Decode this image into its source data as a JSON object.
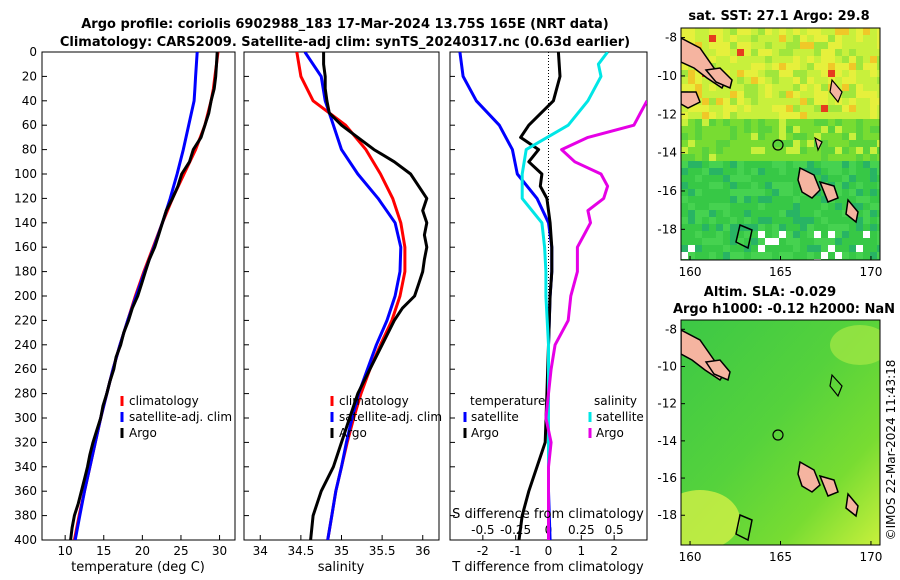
{
  "title": {
    "line1": "Argo profile: coriolis 6902988_183 17-Mar-2024 13.75S 165E (NRT data)",
    "line2": "Climatology: CARS2009. Satellite-adj clim: synTS_20240317.nc (0.63d earlier)"
  },
  "colors": {
    "climatology": "#ff0000",
    "satellite": "#0000ff",
    "argo": "#000000",
    "sdiff_satellite": "#00e6e6",
    "sdiff_argo": "#e600e6"
  },
  "chart_data": [
    {
      "id": "temperature",
      "type": "line",
      "xlabel": "temperature (deg C)",
      "xlim": [
        7,
        32
      ],
      "ylim": [
        400,
        0
      ],
      "xticks": [
        "10",
        "15",
        "20",
        "25",
        "30"
      ],
      "yticks": [
        "0",
        "20",
        "40",
        "60",
        "80",
        "100",
        "120",
        "140",
        "160",
        "180",
        "200",
        "220",
        "240",
        "260",
        "280",
        "300",
        "320",
        "340",
        "360",
        "380",
        "400"
      ],
      "legend": [
        "climatology",
        "satellite-adj. clim",
        "Argo"
      ],
      "legend_position": "lower-right",
      "series": [
        {
          "name": "climatology",
          "depth": [
            0,
            10,
            20,
            30,
            40,
            60,
            80,
            100,
            120,
            140,
            160,
            180,
            200,
            220,
            240,
            260,
            280,
            300,
            320,
            340,
            360,
            380,
            400
          ],
          "values": [
            29.8,
            29.6,
            29.4,
            29.2,
            28.9,
            28.1,
            26.9,
            25.4,
            23.9,
            22.6,
            21.4,
            20.2,
            19.1,
            18.1,
            17.1,
            16.2,
            15.4,
            14.6,
            13.9,
            13.2,
            12.5,
            11.8,
            11.2
          ]
        },
        {
          "name": "satellite-adj. clim",
          "depth": [
            0,
            10,
            20,
            30,
            40,
            60,
            80,
            100,
            120,
            140,
            160,
            180,
            200,
            220,
            240,
            260,
            280,
            300,
            320,
            340,
            360,
            380,
            400
          ],
          "values": [
            27.1,
            27.0,
            26.9,
            26.8,
            26.7,
            26.0,
            25.3,
            24.5,
            23.6,
            22.6,
            21.5,
            20.3,
            19.2,
            18.1,
            17.1,
            16.2,
            15.4,
            14.6,
            13.9,
            13.2,
            12.5,
            11.9,
            11.3
          ]
        },
        {
          "name": "Argo",
          "depth": [
            0,
            10,
            20,
            30,
            40,
            50,
            60,
            70,
            80,
            90,
            100,
            110,
            120,
            130,
            140,
            150,
            160,
            170,
            180,
            190,
            200,
            210,
            220,
            230,
            240,
            250,
            260,
            270,
            280,
            290,
            300,
            310,
            320,
            330,
            340,
            350,
            360,
            370,
            380,
            390,
            400
          ],
          "values": [
            29.7,
            29.6,
            29.5,
            29.3,
            28.9,
            28.6,
            28.1,
            27.6,
            26.6,
            26.1,
            25.1,
            24.6,
            23.9,
            23.1,
            22.6,
            22.1,
            21.6,
            20.9,
            20.4,
            19.9,
            19.4,
            18.7,
            18.2,
            17.6,
            17.2,
            16.6,
            16.3,
            15.8,
            15.4,
            14.9,
            14.6,
            14.1,
            13.6,
            13.2,
            12.9,
            12.5,
            12.1,
            11.7,
            11.2,
            10.9,
            10.7
          ]
        }
      ]
    },
    {
      "id": "salinity",
      "type": "line",
      "xlabel": "salinity",
      "xlim": [
        33.8,
        36.2
      ],
      "ylim": [
        400,
        0
      ],
      "xticks": [
        "34",
        "34.5",
        "35",
        "35.5",
        "36"
      ],
      "legend": [
        "climatology",
        "satellite-adj. clim",
        "Argo"
      ],
      "legend_position": "lower-right",
      "series": [
        {
          "name": "climatology",
          "depth": [
            0,
            20,
            40,
            60,
            80,
            100,
            120,
            140,
            160,
            180,
            200,
            220,
            240,
            260,
            280,
            300,
            320,
            340,
            360,
            380,
            400
          ],
          "values": [
            34.45,
            34.5,
            34.65,
            35.05,
            35.3,
            35.48,
            35.63,
            35.73,
            35.78,
            35.78,
            35.72,
            35.62,
            35.48,
            35.35,
            35.24,
            35.15,
            35.07,
            35.0,
            34.93,
            34.88,
            34.83
          ]
        },
        {
          "name": "satellite-adj. clim",
          "depth": [
            0,
            20,
            40,
            60,
            80,
            100,
            120,
            140,
            160,
            180,
            200,
            220,
            240,
            260,
            280,
            300,
            320,
            340,
            360,
            380,
            400
          ],
          "values": [
            34.55,
            34.75,
            34.8,
            34.9,
            35.0,
            35.2,
            35.45,
            35.66,
            35.73,
            35.72,
            35.66,
            35.56,
            35.43,
            35.32,
            35.21,
            35.13,
            35.06,
            35.0,
            34.93,
            34.88,
            34.83
          ]
        },
        {
          "name": "Argo",
          "depth": [
            0,
            10,
            20,
            30,
            40,
            50,
            60,
            70,
            80,
            90,
            100,
            110,
            120,
            130,
            140,
            150,
            160,
            170,
            180,
            190,
            200,
            210,
            220,
            240,
            260,
            280,
            300,
            320,
            340,
            360,
            380,
            400
          ],
          "values": [
            34.78,
            34.78,
            34.8,
            34.8,
            34.82,
            34.85,
            35.0,
            35.2,
            35.4,
            35.65,
            35.85,
            35.95,
            36.05,
            36.0,
            36.05,
            36.02,
            36.05,
            36.02,
            36.0,
            35.95,
            35.9,
            35.75,
            35.65,
            35.5,
            35.35,
            35.2,
            35.1,
            35.0,
            34.9,
            34.75,
            34.65,
            34.62
          ]
        }
      ]
    },
    {
      "id": "differences",
      "type": "line",
      "xlabel": "T difference from climatology",
      "xlim": [
        -3,
        3
      ],
      "ylim": [
        400,
        0
      ],
      "xticks": [
        "-2",
        "-1",
        "0",
        "1",
        "2"
      ],
      "top_axis_label": "S difference from climatology",
      "top_axis_ticks": [
        "-0.5",
        "-0.25",
        "0",
        "0.25",
        "0.5"
      ],
      "legend_temperature": {
        "title": "temperature",
        "entries": [
          "satellite",
          "Argo"
        ]
      },
      "legend_salinity": {
        "title": "salinity",
        "entries": [
          "satellite",
          "Argo"
        ]
      },
      "series": [
        {
          "name": "temperature satellite",
          "depth": [
            0,
            20,
            40,
            60,
            80,
            100,
            120,
            140,
            160,
            180,
            200,
            240,
            280,
            320,
            360,
            400
          ],
          "values": [
            -2.7,
            -2.6,
            -2.2,
            -1.5,
            -1.1,
            -0.95,
            -0.35,
            0,
            0.1,
            0.1,
            0.05,
            0,
            0,
            0,
            0,
            0.05
          ]
        },
        {
          "name": "temperature Argo",
          "depth": [
            0,
            20,
            40,
            60,
            70,
            80,
            90,
            100,
            110,
            120,
            140,
            160,
            180,
            200,
            240,
            280,
            320,
            360,
            380,
            400
          ],
          "values": [
            0.3,
            0.35,
            0.15,
            -0.6,
            -0.85,
            -0.3,
            -0.6,
            -0.2,
            -0.25,
            -0.05,
            0.05,
            0.1,
            0.1,
            0.05,
            0,
            -0.05,
            -0.1,
            -0.6,
            -0.8,
            -0.9
          ]
        },
        {
          "name": "salinity satellite",
          "depth": [
            0,
            10,
            20,
            40,
            60,
            80,
            100,
            120,
            140,
            160,
            180,
            200,
            240,
            280,
            320,
            360,
            400
          ],
          "values": [
            0.45,
            0.38,
            0.4,
            0.3,
            0.15,
            -0.17,
            -0.2,
            -0.2,
            -0.05,
            -0.03,
            -0.02,
            -0.02,
            0,
            0,
            0,
            0,
            0
          ]
        },
        {
          "name": "salinity Argo",
          "depth": [
            40,
            50,
            60,
            70,
            80,
            90,
            100,
            110,
            120,
            130,
            140,
            150,
            160,
            180,
            200,
            220,
            240,
            260,
            280,
            300,
            320,
            340,
            360,
            380,
            400
          ],
          "values": [
            0.75,
            0.7,
            0.65,
            0.3,
            0.1,
            0.2,
            0.4,
            0.45,
            0.42,
            0.3,
            0.32,
            0.27,
            0.22,
            0.22,
            0.17,
            0.15,
            0.05,
            0.02,
            0.0,
            -0.02,
            0.02,
            0.0,
            0.0,
            0.0,
            0.0
          ]
        }
      ]
    }
  ],
  "maps": {
    "sst": {
      "title": "sat. SST: 27.1 Argo: 29.8",
      "xticks": [
        "160",
        "165",
        "170"
      ],
      "yticks": [
        "-8",
        "-10",
        "-12",
        "-14",
        "-16",
        "-18"
      ],
      "marker": {
        "lon": 165,
        "lat": -13.75
      }
    },
    "sla": {
      "title1": "Altim. SLA: -0.029",
      "title2": "Argo h1000: -0.12 h2000: NaN",
      "xticks": [
        "160",
        "165",
        "170"
      ],
      "yticks": [
        "-8",
        "-10",
        "-12",
        "-14",
        "-16",
        "-18"
      ],
      "marker": {
        "lon": 165,
        "lat": -13.75
      }
    }
  },
  "credit": "©IMOS 22-Mar-2024 11:43:18"
}
